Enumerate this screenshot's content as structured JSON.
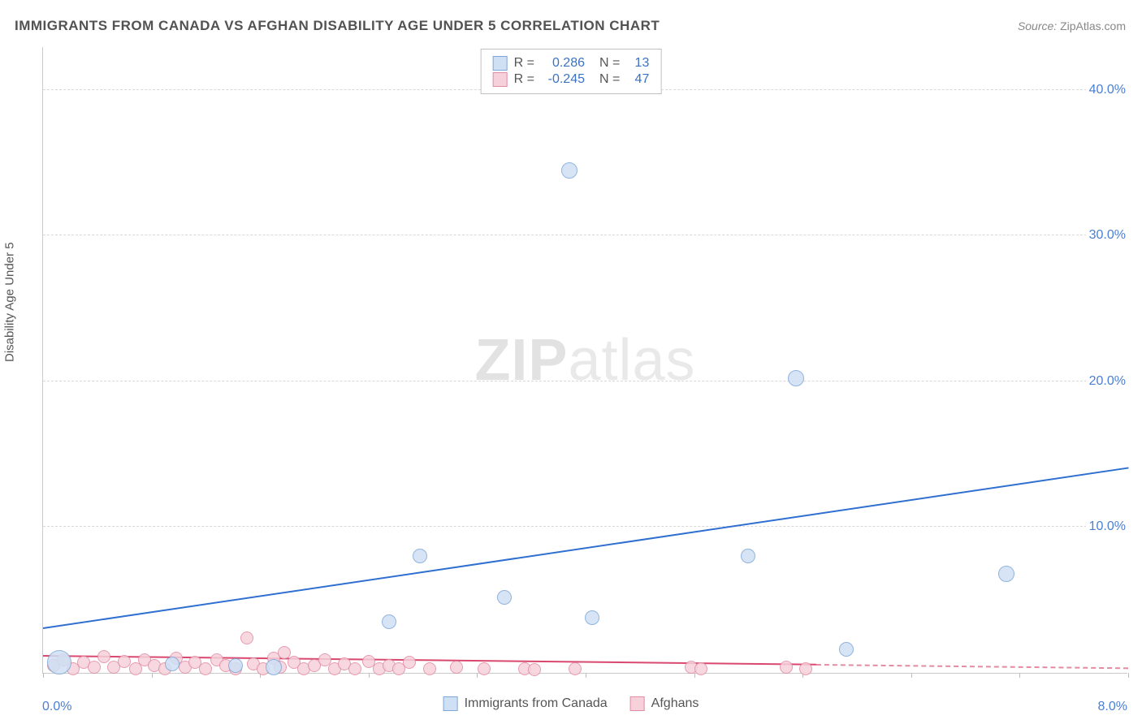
{
  "title": "IMMIGRANTS FROM CANADA VS AFGHAN DISABILITY AGE UNDER 5 CORRELATION CHART",
  "source_label": "Source:",
  "source_value": "ZipAtlas.com",
  "y_axis_title": "Disability Age Under 5",
  "watermark_bold": "ZIP",
  "watermark_reg": "atlas",
  "chart": {
    "type": "scatter",
    "xlim": [
      0,
      8.0
    ],
    "ylim": [
      0,
      43.0
    ],
    "x_origin_label": "0.0%",
    "x_end_label": "8.0%",
    "y_ticks": [
      10.0,
      20.0,
      30.0,
      40.0
    ],
    "y_tick_labels": [
      "10.0%",
      "20.0%",
      "30.0%",
      "40.0%"
    ],
    "x_tick_positions": [
      0,
      0.8,
      1.6,
      2.4,
      3.2,
      4.0,
      4.8,
      5.6,
      6.4,
      7.2,
      8.0
    ],
    "background_color": "#ffffff",
    "grid_color": "#d8d8d8",
    "axis_color": "#c9c9c9",
    "series": [
      {
        "name": "Immigrants from Canada",
        "fill": "#cfe0f5",
        "stroke": "#7ea7d8",
        "trend_color": "#2f6fd0",
        "r_value": "0.286",
        "n_value": "13",
        "marker_r": 9,
        "trend": {
          "x1": 0,
          "y1": 3.0,
          "x2": 8.0,
          "y2": 14.0,
          "dash_from_x": 8.0
        },
        "points": [
          {
            "x": 0.12,
            "y": 0.7,
            "r": 15
          },
          {
            "x": 0.95,
            "y": 0.6,
            "r": 9
          },
          {
            "x": 1.42,
            "y": 0.5,
            "r": 9
          },
          {
            "x": 1.7,
            "y": 0.4,
            "r": 10
          },
          {
            "x": 2.55,
            "y": 3.5,
            "r": 9
          },
          {
            "x": 2.78,
            "y": 8.0,
            "r": 9
          },
          {
            "x": 3.4,
            "y": 5.2,
            "r": 9
          },
          {
            "x": 3.88,
            "y": 34.5,
            "r": 10
          },
          {
            "x": 4.05,
            "y": 3.8,
            "r": 9
          },
          {
            "x": 5.2,
            "y": 8.0,
            "r": 9
          },
          {
            "x": 5.55,
            "y": 20.2,
            "r": 10
          },
          {
            "x": 5.92,
            "y": 1.6,
            "r": 9
          },
          {
            "x": 7.1,
            "y": 6.8,
            "r": 10
          }
        ]
      },
      {
        "name": "Afghans",
        "fill": "#f6d1db",
        "stroke": "#e28ca3",
        "trend_color": "#d9486f",
        "r_value": "-0.245",
        "n_value": "47",
        "marker_r": 8,
        "trend": {
          "x1": 0,
          "y1": 1.1,
          "x2": 5.7,
          "y2": 0.5,
          "dash_from_x": 5.7
        },
        "points": [
          {
            "x": 0.08,
            "y": 0.5
          },
          {
            "x": 0.15,
            "y": 0.9
          },
          {
            "x": 0.22,
            "y": 0.3
          },
          {
            "x": 0.3,
            "y": 0.7
          },
          {
            "x": 0.38,
            "y": 0.4
          },
          {
            "x": 0.45,
            "y": 1.1
          },
          {
            "x": 0.52,
            "y": 0.4
          },
          {
            "x": 0.6,
            "y": 0.8
          },
          {
            "x": 0.68,
            "y": 0.3
          },
          {
            "x": 0.75,
            "y": 0.9
          },
          {
            "x": 0.82,
            "y": 0.5
          },
          {
            "x": 0.9,
            "y": 0.3
          },
          {
            "x": 0.98,
            "y": 1.0
          },
          {
            "x": 1.05,
            "y": 0.4
          },
          {
            "x": 1.12,
            "y": 0.7
          },
          {
            "x": 1.2,
            "y": 0.3
          },
          {
            "x": 1.28,
            "y": 0.9
          },
          {
            "x": 1.35,
            "y": 0.5
          },
          {
            "x": 1.42,
            "y": 0.3
          },
          {
            "x": 1.5,
            "y": 2.4
          },
          {
            "x": 1.55,
            "y": 0.6
          },
          {
            "x": 1.62,
            "y": 0.3
          },
          {
            "x": 1.7,
            "y": 1.0
          },
          {
            "x": 1.75,
            "y": 0.4
          },
          {
            "x": 1.78,
            "y": 1.4
          },
          {
            "x": 1.85,
            "y": 0.7
          },
          {
            "x": 1.92,
            "y": 0.3
          },
          {
            "x": 2.0,
            "y": 0.5
          },
          {
            "x": 2.08,
            "y": 0.9
          },
          {
            "x": 2.15,
            "y": 0.3
          },
          {
            "x": 2.22,
            "y": 0.6
          },
          {
            "x": 2.3,
            "y": 0.3
          },
          {
            "x": 2.4,
            "y": 0.8
          },
          {
            "x": 2.48,
            "y": 0.3
          },
          {
            "x": 2.55,
            "y": 0.5
          },
          {
            "x": 2.62,
            "y": 0.3
          },
          {
            "x": 2.7,
            "y": 0.7
          },
          {
            "x": 2.85,
            "y": 0.3
          },
          {
            "x": 3.05,
            "y": 0.4
          },
          {
            "x": 3.25,
            "y": 0.3
          },
          {
            "x": 3.55,
            "y": 0.3
          },
          {
            "x": 3.62,
            "y": 0.2
          },
          {
            "x": 3.92,
            "y": 0.3
          },
          {
            "x": 4.78,
            "y": 0.4
          },
          {
            "x": 4.85,
            "y": 0.3
          },
          {
            "x": 5.48,
            "y": 0.4
          },
          {
            "x": 5.62,
            "y": 0.3
          }
        ]
      }
    ],
    "legend_bottom": [
      {
        "label": "Immigrants from Canada",
        "fill": "#cfe0f5",
        "stroke": "#7ea7d8"
      },
      {
        "label": "Afghans",
        "fill": "#f6d1db",
        "stroke": "#e28ca3"
      }
    ]
  }
}
